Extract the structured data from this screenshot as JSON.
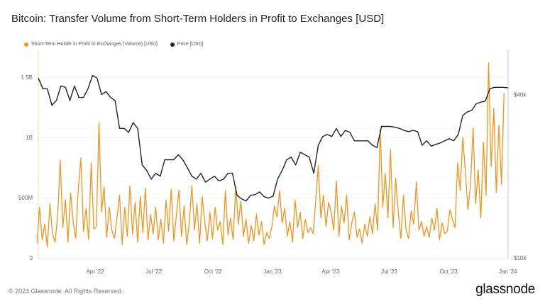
{
  "chart_data": {
    "type": "line",
    "title": "Bitcoin: Transfer Volume from Short-Term Holders in Profit to Exchanges [USD]",
    "legend_position": "top-left",
    "grid": true,
    "x_ticks": [
      "Apr '22",
      "Jul '22",
      "Oct '22",
      "Jan '23",
      "Apr '23",
      "Jul '23",
      "Oct '23",
      "Jan '24"
    ],
    "x_tick_dates": [
      "2022-04-01",
      "2022-07-01",
      "2022-10-01",
      "2023-01-01",
      "2023-04-01",
      "2023-07-01",
      "2023-10-01",
      "2024-01-01"
    ],
    "y_left": {
      "ticks": [
        "0",
        "500M",
        "1B",
        "1.5B"
      ],
      "tick_values": [
        0,
        500,
        1000,
        1500
      ],
      "unit": "USD millions",
      "range": [
        0,
        1750
      ]
    },
    "y_right": {
      "ticks": [
        "$10k",
        "$40k"
      ],
      "tick_values": [
        10000,
        40000
      ],
      "scale": "log"
    },
    "series": [
      {
        "name": "Short-Term Holder in Profit to Exchanges (Volume) [USD]",
        "color": "#f7931a",
        "axis": "left",
        "start_date": "2022-01-01",
        "interval_days": 4,
        "values": [
          120,
          420,
          150,
          280,
          90,
          450,
          200,
          130,
          350,
          810,
          250,
          480,
          130,
          540,
          300,
          160,
          580,
          830,
          220,
          410,
          150,
          790,
          240,
          260,
          1120,
          380,
          590,
          170,
          420,
          230,
          160,
          340,
          520,
          110,
          420,
          180,
          600,
          200,
          460,
          130,
          510,
          210,
          580,
          150,
          360,
          200,
          420,
          150,
          320,
          120,
          480,
          220,
          570,
          140,
          350,
          560,
          180,
          430,
          110,
          290,
          600,
          230,
          450,
          120,
          510,
          300,
          140,
          380,
          160,
          420,
          230,
          300,
          110,
          560,
          190,
          330,
          150,
          590,
          280,
          470,
          180,
          320,
          120,
          270,
          140,
          360,
          190,
          300,
          110,
          210,
          160,
          260,
          430,
          340,
          560,
          290,
          410,
          180,
          300,
          130,
          480,
          250,
          380,
          160,
          320,
          210,
          250,
          200,
          470,
          770,
          330,
          520,
          260,
          460,
          380,
          230,
          640,
          180,
          430,
          290,
          520,
          150,
          290,
          380,
          170,
          240,
          120,
          280,
          180,
          340,
          200,
          450,
          230,
          1070,
          420,
          700,
          330,
          900,
          250,
          660,
          380,
          160,
          520,
          240,
          160,
          390,
          280,
          630,
          230,
          300,
          180,
          260,
          170,
          330,
          230,
          410,
          150,
          290,
          200,
          220,
          400,
          320,
          250,
          790,
          560,
          1000,
          720,
          400,
          600,
          1080,
          450,
          730,
          330,
          960,
          520,
          1620,
          760,
          1240,
          540,
          1100,
          610,
          1370
        ]
      },
      {
        "name": "Price [USD]",
        "color": "#222222",
        "axis": "right",
        "start_date": "2022-01-03",
        "interval_days": 7,
        "values": [
          46000,
          42000,
          42000,
          36500,
          38000,
          43000,
          42500,
          38000,
          43000,
          39000,
          39000,
          42000,
          47000,
          46000,
          40000,
          41000,
          39000,
          38000,
          30000,
          30000,
          29000,
          31500,
          30000,
          22000,
          21000,
          19500,
          20500,
          20000,
          23000,
          23000,
          23000,
          24000,
          23000,
          21500,
          20000,
          19500,
          20500,
          19000,
          19500,
          20000,
          19200,
          19500,
          20500,
          20500,
          17000,
          16500,
          16200,
          17000,
          17100,
          17500,
          16800,
          16600,
          16900,
          19500,
          21000,
          23000,
          23500,
          22000,
          24500,
          24000,
          23500,
          20500,
          26000,
          28000,
          28500,
          28000,
          30000,
          28000,
          29500,
          29000,
          27000,
          27000,
          27000,
          27000,
          26000,
          25500,
          30500,
          30500,
          30500,
          30300,
          30000,
          29500,
          29200,
          29500,
          29200,
          26000,
          27000,
          25800,
          26200,
          26500,
          27000,
          27500,
          27000,
          28500,
          33500,
          34500,
          35000,
          37000,
          37500,
          37800,
          42000,
          42500,
          42500,
          42500,
          42300
        ]
      }
    ]
  },
  "footer": {
    "copyright": "© 2024 Glassnode. All Rights Reserved.",
    "logo": "glassnode"
  }
}
